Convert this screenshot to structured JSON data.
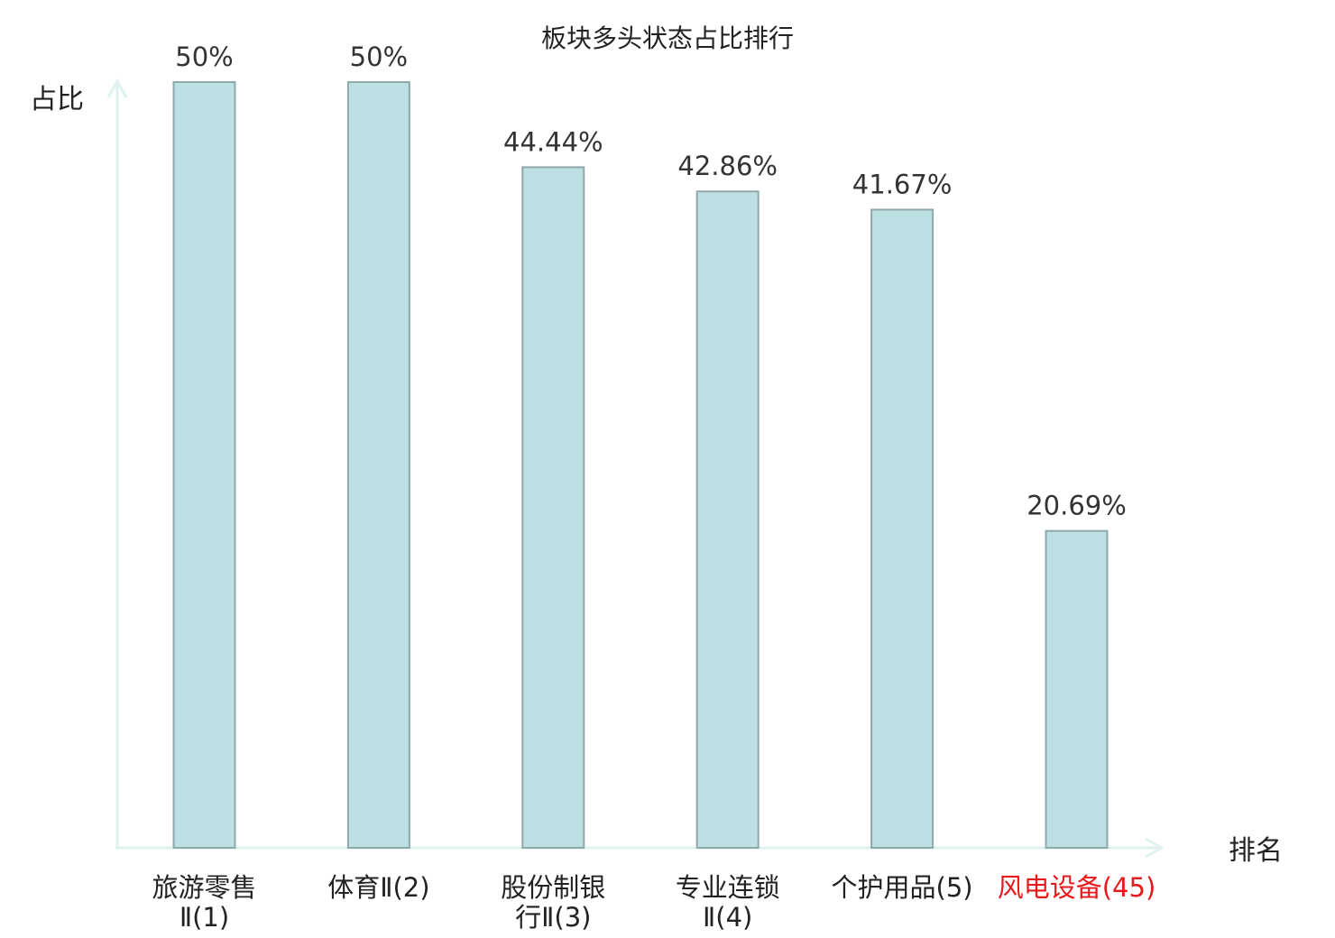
{
  "chart_data": {
    "type": "bar",
    "title": "板块多头状态占比排行",
    "ylabel": "占比",
    "xlabel": "排名",
    "ylim": [
      0,
      50
    ],
    "grid": false,
    "categories": [
      {
        "lines": [
          "旅游零售",
          "Ⅱ(1)"
        ],
        "highlight": false
      },
      {
        "lines": [
          "体育Ⅱ(2)"
        ],
        "highlight": false
      },
      {
        "lines": [
          "股份制银",
          "行Ⅱ(3)"
        ],
        "highlight": false
      },
      {
        "lines": [
          "专业连锁",
          "Ⅱ(4)"
        ],
        "highlight": false
      },
      {
        "lines": [
          "个护用品(5)"
        ],
        "highlight": false
      },
      {
        "lines": [
          "风电设备(45)"
        ],
        "highlight": true
      }
    ],
    "values": [
      50,
      50,
      44.44,
      42.86,
      41.67,
      20.69
    ],
    "value_labels": [
      "50%",
      "50%",
      "44.44%",
      "42.86%",
      "41.67%",
      "20.69%"
    ],
    "colors": {
      "bar_fill": "#bce0e3",
      "bar_stroke": "#8fa9ab",
      "axis": "#e0f2ef",
      "highlight_text": "#e8191b"
    }
  }
}
